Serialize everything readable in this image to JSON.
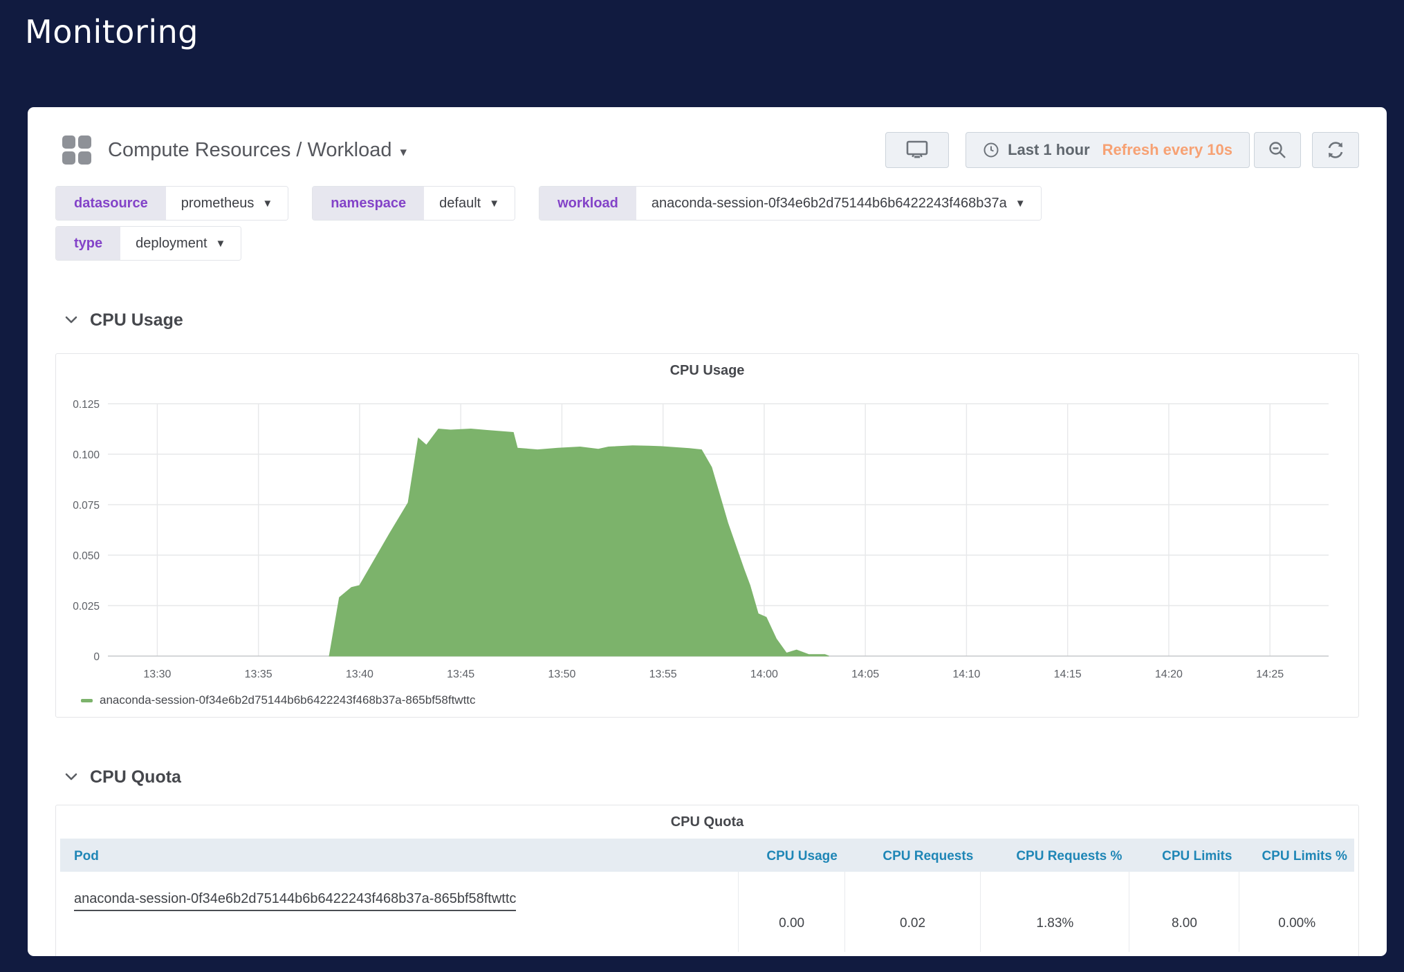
{
  "page": {
    "title": "Monitoring"
  },
  "toolbar": {
    "dashboard_title": "Compute Resources / Workload",
    "time_range_label": "Last 1 hour",
    "refresh_label": "Refresh every 10s",
    "colors": {
      "refresh_accent": "#f7a173",
      "button_icon": "#6d737a"
    },
    "icons": [
      "tv-mode-icon",
      "clock-icon",
      "zoom-out-icon",
      "refresh-icon"
    ]
  },
  "filters": {
    "rows": [
      [
        {
          "label": "datasource",
          "value": "prometheus"
        },
        {
          "label": "namespace",
          "value": "default"
        },
        {
          "label": "workload",
          "value": "anaconda-session-0f34e6b2d75144b6b6422243f468b37a"
        }
      ],
      [
        {
          "label": "type",
          "value": "deployment"
        }
      ]
    ],
    "label_color": "#8343c8"
  },
  "sections": [
    {
      "title": "CPU Usage"
    },
    {
      "title": "CPU Quota"
    }
  ],
  "chart_data": {
    "type": "area",
    "title": "CPU Usage",
    "xlabel": "",
    "ylabel": "",
    "ylim": [
      0,
      0.125
    ],
    "x_range_minutes": [
      -2.1,
      57.9
    ],
    "grid": true,
    "legend_position": "bottom-left",
    "y_ticks": [
      {
        "v": 0,
        "label": "0"
      },
      {
        "v": 0.025,
        "label": "0.025"
      },
      {
        "v": 0.05,
        "label": "0.050"
      },
      {
        "v": 0.075,
        "label": "0.075"
      },
      {
        "v": 0.1,
        "label": "0.100"
      },
      {
        "v": 0.125,
        "label": "0.125"
      }
    ],
    "x_ticks": [
      {
        "t": 0,
        "label": "13:30"
      },
      {
        "t": 5,
        "label": "13:35"
      },
      {
        "t": 10,
        "label": "13:40"
      },
      {
        "t": 15,
        "label": "13:45"
      },
      {
        "t": 20,
        "label": "13:50"
      },
      {
        "t": 25,
        "label": "13:55"
      },
      {
        "t": 30,
        "label": "14:00"
      },
      {
        "t": 35,
        "label": "14:05"
      },
      {
        "t": 40,
        "label": "14:10"
      },
      {
        "t": 45,
        "label": "14:15"
      },
      {
        "t": 50,
        "label": "14:20"
      },
      {
        "t": 55,
        "label": "14:25"
      }
    ],
    "series": [
      {
        "name": "anaconda-session-0f34e6b2d75144b6b6422243f468b37a-865bf58ftwttc",
        "color": "#7cb36b",
        "points": [
          [
            8.5,
            0
          ],
          [
            9.0,
            0.029
          ],
          [
            9.6,
            0.034
          ],
          [
            10.0,
            0.035
          ],
          [
            11.5,
            0.061
          ],
          [
            12.4,
            0.076
          ],
          [
            12.9,
            0.108
          ],
          [
            13.3,
            0.1045
          ],
          [
            13.9,
            0.1125
          ],
          [
            14.5,
            0.112
          ],
          [
            15.5,
            0.1125
          ],
          [
            16.3,
            0.1118
          ],
          [
            17.6,
            0.1108
          ],
          [
            17.8,
            0.103
          ],
          [
            18.8,
            0.1022
          ],
          [
            19.8,
            0.103
          ],
          [
            20.9,
            0.1036
          ],
          [
            21.8,
            0.1025
          ],
          [
            22.3,
            0.1036
          ],
          [
            23.5,
            0.1042
          ],
          [
            24.3,
            0.104
          ],
          [
            24.9,
            0.1038
          ],
          [
            26.3,
            0.1028
          ],
          [
            26.9,
            0.1022
          ],
          [
            27.4,
            0.0935
          ],
          [
            28.2,
            0.066
          ],
          [
            28.6,
            0.0545
          ],
          [
            29.0,
            0.043
          ],
          [
            29.3,
            0.035
          ],
          [
            29.7,
            0.021
          ],
          [
            30.1,
            0.0192
          ],
          [
            30.6,
            0.0085
          ],
          [
            31.1,
            0.0015
          ],
          [
            31.6,
            0.003
          ],
          [
            32.2,
            0.0008
          ],
          [
            33.0,
            0.0008
          ],
          [
            33.2,
            0
          ]
        ]
      }
    ]
  },
  "quota_table": {
    "title": "CPU Quota",
    "columns": [
      "Pod",
      "CPU Usage",
      "CPU Requests",
      "CPU Requests %",
      "CPU Limits",
      "CPU Limits %"
    ],
    "rows": [
      {
        "pod": "anaconda-session-0f34e6b2d75144b6b6422243f468b37a-865bf58ftwttc",
        "values": [
          "0.00",
          "0.02",
          "1.83%",
          "8.00",
          "0.00%"
        ]
      }
    ],
    "header_color": "#1f86b6"
  }
}
